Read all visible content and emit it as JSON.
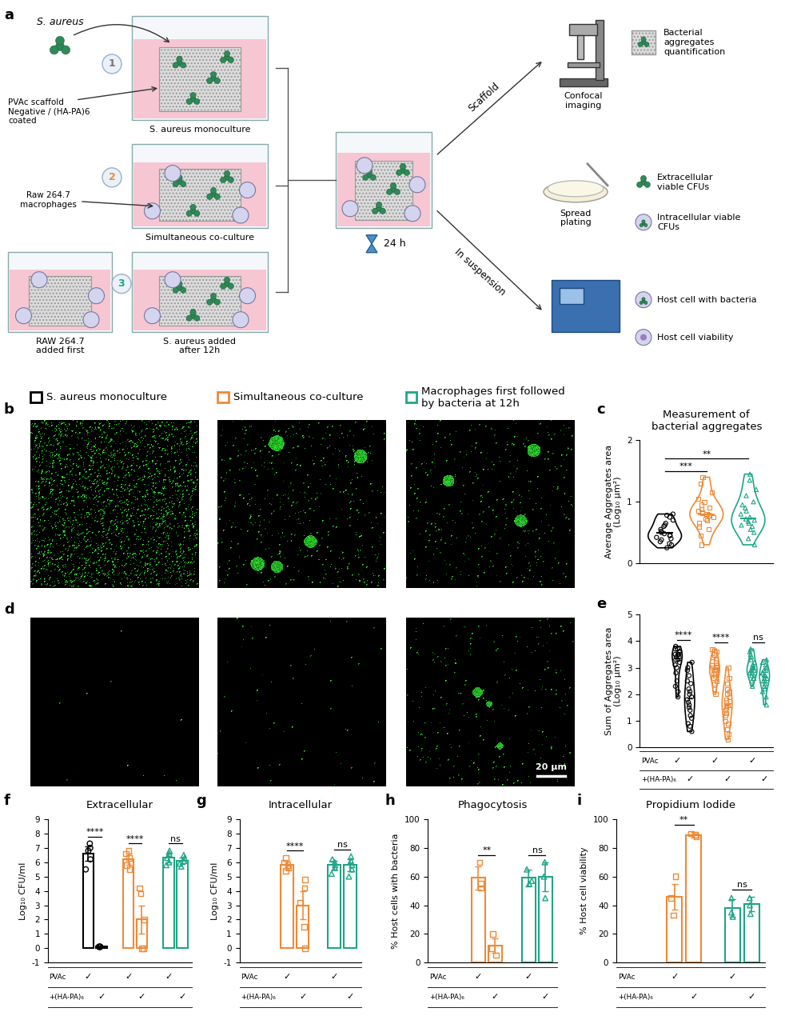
{
  "panel_labels": [
    "a",
    "b",
    "c",
    "d",
    "e",
    "f",
    "g",
    "h",
    "i"
  ],
  "diagram": {
    "organism": "S. aureus",
    "steps": [
      "1",
      "2",
      "3"
    ],
    "scaffold_label": "PVAc scaffold\nNegative / (HA-PA)6\ncoated",
    "well_labels": [
      "S. aureus monoculture",
      "Simultaneous co-culture",
      "S. aureus added\nafter 12h"
    ],
    "macrophage_label": "Raw 264.7\nmacrophages",
    "first_label": "RAW 264.7\nadded first",
    "time": "24 h",
    "routes": [
      "Scaffold",
      "In suspension"
    ],
    "methods": [
      "Confocal\nimaging",
      "Spread\nplating"
    ],
    "readouts": [
      "Bacterial\naggregates\nquantification",
      "Extracellular\nviable CFUs",
      "Intracellular viable\nCFUs",
      "Host cell with bacteria",
      "Host cell viability"
    ]
  },
  "image_panels": {
    "groups": [
      {
        "name": "S. aureus monoculture",
        "color": "#000000"
      },
      {
        "name": "Simultaneous co-culture",
        "color": "#ee8a36"
      },
      {
        "name": "Macrophages first followed\nby bacteria at 12h",
        "color": "#1fa587"
      }
    ],
    "scale_bar": "20 µm"
  },
  "chart_data": [
    {
      "type": "violin",
      "title": "Measurement of\nbacterial aggregates",
      "ylabel": "Average Aggregates area\n(Log₁₀ µm²)",
      "ylim": [
        0,
        2
      ],
      "yticks": [
        0,
        1,
        2
      ],
      "tick_labels": "y",
      "series": [
        {
          "color": "#000000",
          "marker": "o",
          "values": [
            0.25,
            0.3,
            0.32,
            0.35,
            0.38,
            0.4,
            0.42,
            0.45,
            0.45,
            0.48,
            0.5,
            0.52,
            0.55,
            0.6,
            0.62,
            0.65,
            0.7,
            0.75,
            0.78,
            0.8
          ]
        },
        {
          "color": "#ee8a36",
          "marker": "s",
          "values": [
            0.3,
            0.45,
            0.55,
            0.6,
            0.65,
            0.7,
            0.72,
            0.75,
            0.78,
            0.8,
            0.8,
            0.82,
            0.85,
            0.88,
            0.9,
            0.95,
            1.0,
            1.05,
            1.15,
            1.3,
            1.4
          ]
        },
        {
          "color": "#1fa587",
          "marker": "^",
          "values": [
            0.3,
            0.4,
            0.5,
            0.55,
            0.6,
            0.62,
            0.65,
            0.68,
            0.7,
            0.72,
            0.75,
            0.8,
            0.85,
            0.9,
            0.95,
            1.0,
            1.1,
            1.2,
            1.35,
            1.45
          ]
        }
      ],
      "comparisons": [
        {
          "pair": [
            0,
            1
          ],
          "label": "***"
        },
        {
          "pair": [
            0,
            2
          ],
          "label": "**"
        }
      ]
    },
    {
      "type": "violin",
      "ylabel": "Sum of Aggregates area\n(Log₁₀ µm²)",
      "ylim": [
        0,
        5
      ],
      "yticks": [
        0,
        1,
        2,
        3,
        4,
        5
      ],
      "tick_labels": "y",
      "conditions": [
        "PVAc",
        "+(HA-PA)₆"
      ],
      "check": "✓",
      "series": [
        {
          "color": "#000000",
          "marker": "o",
          "condition": "PVAc",
          "values": [
            1.9,
            2.1,
            2.3,
            2.5,
            2.8,
            3.0,
            3.1,
            3.2,
            3.3,
            3.3,
            3.4,
            3.4,
            3.5,
            3.5,
            3.5,
            3.6,
            3.6,
            3.7,
            3.7,
            3.8
          ]
        },
        {
          "color": "#000000",
          "marker": "o",
          "condition": "+(HA-PA)₆",
          "values": [
            0.6,
            0.8,
            0.9,
            1.1,
            1.2,
            1.4,
            1.5,
            1.6,
            1.7,
            1.8,
            1.9,
            2.0,
            2.1,
            2.2,
            2.4,
            2.5,
            2.7,
            2.9,
            3.0,
            3.2
          ]
        },
        {
          "color": "#ee8a36",
          "marker": "s",
          "condition": "PVAc",
          "values": [
            2.0,
            2.2,
            2.4,
            2.5,
            2.6,
            2.7,
            2.8,
            2.8,
            2.9,
            2.9,
            3.0,
            3.0,
            3.1,
            3.1,
            3.2,
            3.3,
            3.4,
            3.5,
            3.6,
            3.7
          ]
        },
        {
          "color": "#ee8a36",
          "marker": "s",
          "condition": "+(HA-PA)₆",
          "values": [
            0.3,
            0.5,
            0.7,
            0.9,
            1.0,
            1.2,
            1.3,
            1.4,
            1.5,
            1.6,
            1.6,
            1.7,
            1.8,
            1.9,
            2.0,
            2.1,
            2.2,
            2.4,
            2.6,
            3.0
          ]
        },
        {
          "color": "#1fa587",
          "marker": "^",
          "condition": "PVAc",
          "values": [
            2.3,
            2.5,
            2.6,
            2.7,
            2.7,
            2.8,
            2.8,
            2.9,
            2.9,
            2.9,
            3.0,
            3.0,
            3.1,
            3.1,
            3.2,
            3.3,
            3.4,
            3.5,
            3.6,
            3.7
          ]
        },
        {
          "color": "#1fa587",
          "marker": "^",
          "condition": "+(HA-PA)₆",
          "values": [
            1.6,
            1.9,
            2.1,
            2.2,
            2.3,
            2.4,
            2.5,
            2.5,
            2.6,
            2.6,
            2.7,
            2.7,
            2.8,
            2.8,
            2.9,
            2.9,
            3.0,
            3.1,
            3.2,
            3.3
          ]
        }
      ],
      "comparisons": [
        {
          "pair": [
            0,
            1
          ],
          "label": "****"
        },
        {
          "pair": [
            2,
            3
          ],
          "label": "****"
        },
        {
          "pair": [
            4,
            5
          ],
          "label": "ns"
        }
      ]
    },
    {
      "type": "bar",
      "title": "Extracellular",
      "ylabel": "Log₁₀ CFU/ml",
      "ylim": [
        -1,
        9
      ],
      "yticks": [
        -1,
        0,
        1,
        2,
        3,
        4,
        5,
        6,
        7,
        8,
        9
      ],
      "tick_labels": "y",
      "conditions": [
        "PVAc",
        "+(HA-PA)₆"
      ],
      "check": "✓",
      "series": [
        {
          "color": "#000000",
          "marker": "o",
          "condition": "PVAc",
          "value": 6.6,
          "error": 0.5,
          "points": [
            7.3,
            7.0,
            6.8,
            6.2,
            5.5
          ]
        },
        {
          "color": "#000000",
          "marker": "o",
          "condition": "+(HA-PA)₆",
          "value": 0.1,
          "error": 0.05,
          "points": [
            0.1,
            0.1,
            0.1,
            0.1,
            0.1
          ]
        },
        {
          "color": "#ee8a36",
          "marker": "s",
          "condition": "PVAc",
          "value": 6.2,
          "error": 0.4,
          "points": [
            6.8,
            6.6,
            6.3,
            5.8,
            5.5
          ]
        },
        {
          "color": "#ee8a36",
          "marker": "s",
          "condition": "+(HA-PA)₆",
          "value": 2.0,
          "error": 1.0,
          "points": [
            4.2,
            3.8,
            2.0,
            0,
            0
          ]
        },
        {
          "color": "#1fa587",
          "marker": "^",
          "condition": "PVAc",
          "value": 6.3,
          "error": 0.3,
          "points": [
            6.8,
            6.6,
            6.3,
            6.0,
            5.8
          ]
        },
        {
          "color": "#1fa587",
          "marker": "^",
          "condition": "+(HA-PA)₆",
          "value": 6.1,
          "error": 0.2,
          "points": [
            6.5,
            6.3,
            6.1,
            5.9,
            5.7
          ]
        }
      ],
      "comparisons": [
        {
          "pair": [
            0,
            1
          ],
          "label": "****"
        },
        {
          "pair": [
            2,
            3
          ],
          "label": "****"
        },
        {
          "pair": [
            4,
            5
          ],
          "label": "ns"
        }
      ]
    },
    {
      "type": "bar",
      "title": "Intracellular",
      "ylabel": "Log₁₀ CFU/ml",
      "ylim": [
        -1,
        9
      ],
      "yticks": [
        -1,
        0,
        1,
        2,
        3,
        4,
        5,
        6,
        7,
        8,
        9
      ],
      "tick_labels": "y",
      "conditions": [
        "PVAc",
        "+(HA-PA)₆"
      ],
      "check": "✓",
      "series": [
        {
          "color": "#ee8a36",
          "marker": "s",
          "condition": "PVAc",
          "value": 5.8,
          "error": 0.3,
          "points": [
            6.3,
            6.0,
            5.8,
            5.6,
            5.4
          ]
        },
        {
          "color": "#ee8a36",
          "marker": "s",
          "condition": "+(HA-PA)₆",
          "value": 3.0,
          "error": 1.0,
          "points": [
            4.8,
            4.2,
            3.2,
            1.5,
            0
          ]
        },
        {
          "color": "#1fa587",
          "marker": "^",
          "condition": "PVAc",
          "value": 5.8,
          "error": 0.3,
          "points": [
            6.2,
            6.0,
            5.8,
            5.6,
            5.2
          ]
        },
        {
          "color": "#1fa587",
          "marker": "^",
          "condition": "+(HA-PA)₆",
          "value": 5.8,
          "error": 0.4,
          "points": [
            6.4,
            6.1,
            5.8,
            5.5,
            5.0
          ]
        }
      ],
      "comparisons": [
        {
          "pair": [
            0,
            1
          ],
          "label": "****"
        },
        {
          "pair": [
            2,
            3
          ],
          "label": "ns"
        }
      ]
    },
    {
      "type": "bar",
      "title": "Phagocytosis",
      "ylabel": "% Host cells with bacteria",
      "ylim": [
        0,
        100
      ],
      "yticks": [
        0,
        20,
        40,
        60,
        80,
        100
      ],
      "tick_labels": "y",
      "conditions": [
        "PVAc",
        "+(HA-PA)₆"
      ],
      "check": "✓",
      "series": [
        {
          "color": "#ee8a36",
          "marker": "s",
          "condition": "PVAc",
          "value": 59,
          "error": 8,
          "points": [
            70,
            55,
            52
          ]
        },
        {
          "color": "#ee8a36",
          "marker": "s",
          "condition": "+(HA-PA)₆",
          "value": 12,
          "error": 5,
          "points": [
            20,
            10,
            5
          ]
        },
        {
          "color": "#1fa587",
          "marker": "^",
          "condition": "PVAc",
          "value": 59,
          "error": 6,
          "points": [
            65,
            55,
            57
          ]
        },
        {
          "color": "#1fa587",
          "marker": "^",
          "condition": "+(HA-PA)₆",
          "value": 60,
          "error": 10,
          "points": [
            70,
            60,
            45
          ]
        }
      ],
      "comparisons": [
        {
          "pair": [
            0,
            1
          ],
          "label": "**"
        },
        {
          "pair": [
            2,
            3
          ],
          "label": "ns"
        }
      ]
    },
    {
      "type": "bar",
      "title": "Propidium Iodide",
      "ylabel": "% Host cell viability",
      "ylim": [
        0,
        100
      ],
      "yticks": [
        0,
        20,
        40,
        60,
        80,
        100
      ],
      "tick_labels": "y",
      "conditions": [
        "PVAc",
        "+(HA-PA)₆"
      ],
      "check": "✓",
      "series": [
        {
          "color": "#ee8a36",
          "marker": "s",
          "condition": "PVAc",
          "value": 46,
          "error": 9,
          "points": [
            60,
            45,
            33
          ]
        },
        {
          "color": "#ee8a36",
          "marker": "s",
          "condition": "+(HA-PA)₆",
          "value": 89,
          "error": 2,
          "points": [
            90,
            89,
            88
          ]
        },
        {
          "color": "#1fa587",
          "marker": "^",
          "condition": "PVAc",
          "value": 38,
          "error": 6,
          "points": [
            45,
            35,
            32
          ]
        },
        {
          "color": "#1fa587",
          "marker": "^",
          "condition": "+(HA-PA)₆",
          "value": 41,
          "error": 5,
          "points": [
            45,
            40,
            34
          ]
        }
      ],
      "comparisons": [
        {
          "pair": [
            0,
            1
          ],
          "label": "**"
        },
        {
          "pair": [
            2,
            3
          ],
          "label": "ns"
        }
      ]
    }
  ]
}
